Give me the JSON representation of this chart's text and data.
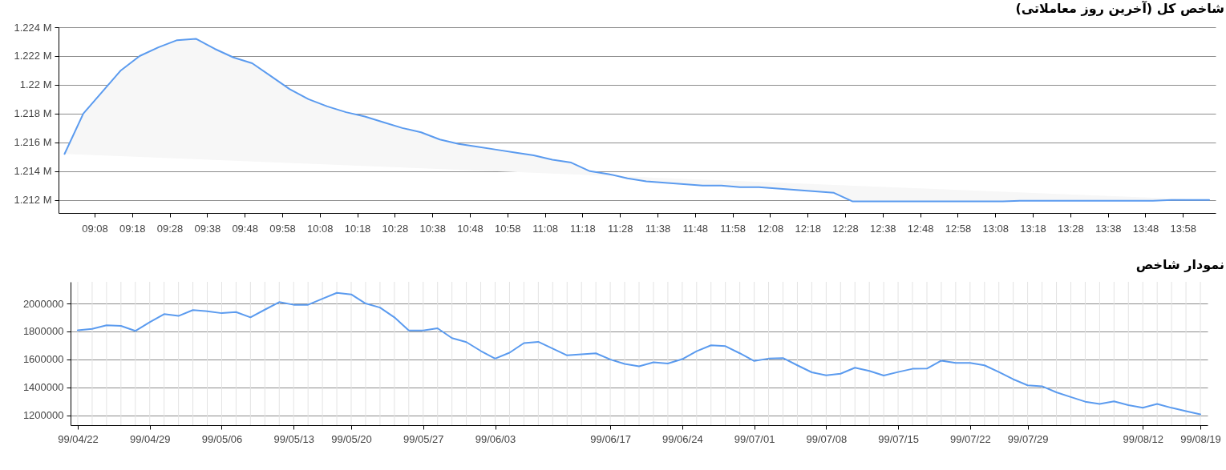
{
  "chart_data": [
    {
      "type": "area",
      "title": "شاخص کل (آخرین روز معاملاتی)",
      "x": [
        9.0,
        9.0833,
        9.1667,
        9.25,
        9.3333,
        9.4167,
        9.5,
        9.5833,
        9.6667,
        9.75,
        9.8333,
        9.9167,
        10.0,
        10.0833,
        10.1667,
        10.25,
        10.3333,
        10.4167,
        10.5,
        10.5833,
        10.6667,
        10.75,
        10.8333,
        10.9167,
        11.0,
        11.0833,
        11.1667,
        11.25,
        11.3333,
        11.4167,
        11.5,
        11.5833,
        11.6667,
        11.75,
        11.8333,
        11.9167,
        12.0,
        12.0833,
        12.1667,
        12.25,
        12.3333,
        12.4167,
        12.5,
        12.5833,
        12.6667,
        12.75,
        12.8333,
        12.9167,
        13.0,
        13.0833,
        13.1667,
        13.25,
        13.3333,
        13.4167,
        13.5,
        13.5833,
        13.6667,
        13.75,
        13.8333,
        13.9167,
        14.0,
        14.0833
      ],
      "series": [
        {
          "color": "#5b9bef",
          "values": [
            1215200,
            1218000,
            1219500,
            1221000,
            1222000,
            1222600,
            1223100,
            1223200,
            1222500,
            1221900,
            1221500,
            1220600,
            1219700,
            1219000,
            1218500,
            1218100,
            1217800,
            1217400,
            1217000,
            1216700,
            1216200,
            1215900,
            1215700,
            1215500,
            1215300,
            1215100,
            1214800,
            1214600,
            1214000,
            1213800,
            1213500,
            1213300,
            1213200,
            1213100,
            1213000,
            1213000,
            1212900,
            1212900,
            1212800,
            1212700,
            1212600,
            1212500,
            1211900,
            1211900,
            1211900,
            1211900,
            1211900,
            1211900,
            1211900,
            1211900,
            1211900,
            1211950,
            1211950,
            1211950,
            1211950,
            1211950,
            1211950,
            1211950,
            1211950,
            1212000,
            1212000,
            1212000
          ]
        }
      ],
      "xlim": [
        8.9733,
        14.1117
      ],
      "xticks": [
        {
          "value": 9.1333,
          "label": "09:08"
        },
        {
          "value": 9.3,
          "label": "09:18"
        },
        {
          "value": 9.4667,
          "label": "09:28"
        },
        {
          "value": 9.6333,
          "label": "09:38"
        },
        {
          "value": 9.8,
          "label": "09:48"
        },
        {
          "value": 9.9667,
          "label": "09:58"
        },
        {
          "value": 10.1333,
          "label": "10:08"
        },
        {
          "value": 10.3,
          "label": "10:18"
        },
        {
          "value": 10.4667,
          "label": "10:28"
        },
        {
          "value": 10.6333,
          "label": "10:38"
        },
        {
          "value": 10.8,
          "label": "10:48"
        },
        {
          "value": 10.9667,
          "label": "10:58"
        },
        {
          "value": 11.1333,
          "label": "11:08"
        },
        {
          "value": 11.3,
          "label": "11:18"
        },
        {
          "value": 11.4667,
          "label": "11:28"
        },
        {
          "value": 11.6333,
          "label": "11:38"
        },
        {
          "value": 11.8,
          "label": "11:48"
        },
        {
          "value": 11.9667,
          "label": "11:58"
        },
        {
          "value": 12.1333,
          "label": "12:08"
        },
        {
          "value": 12.3,
          "label": "12:18"
        },
        {
          "value": 12.4667,
          "label": "12:28"
        },
        {
          "value": 12.6333,
          "label": "12:38"
        },
        {
          "value": 12.8,
          "label": "12:48"
        },
        {
          "value": 12.9667,
          "label": "12:58"
        },
        {
          "value": 13.1333,
          "label": "13:08"
        },
        {
          "value": 13.3,
          "label": "13:18"
        },
        {
          "value": 13.4667,
          "label": "13:28"
        },
        {
          "value": 13.6333,
          "label": "13:38"
        },
        {
          "value": 13.8,
          "label": "13:48"
        },
        {
          "value": 13.9667,
          "label": "13:58"
        }
      ],
      "ylim": [
        1211100,
        1224000
      ],
      "yticks": [
        {
          "value": 1212000,
          "label": "1.212 M"
        },
        {
          "value": 1214000,
          "label": "1.214 M"
        },
        {
          "value": 1216000,
          "label": "1.216 M"
        },
        {
          "value": 1218000,
          "label": "1.218 M"
        },
        {
          "value": 1220000,
          "label": "1.22 M"
        },
        {
          "value": 1222000,
          "label": "1.222 M"
        },
        {
          "value": 1224000,
          "label": "1.224 M"
        }
      ],
      "grid": "y"
    },
    {
      "type": "line",
      "title": "نمودار شاخص",
      "categories": [
        "99/04/22",
        null,
        null,
        null,
        null,
        "99/04/29",
        null,
        null,
        null,
        null,
        "99/05/06",
        null,
        null,
        null,
        null,
        "99/05/13",
        null,
        null,
        null,
        "99/05/20",
        null,
        null,
        null,
        null,
        "99/05/27",
        null,
        null,
        null,
        null,
        "99/06/03",
        null,
        null,
        null,
        null,
        null,
        null,
        null,
        "99/06/17",
        null,
        null,
        null,
        null,
        "99/06/24",
        null,
        null,
        null,
        null,
        "99/07/01",
        null,
        null,
        null,
        null,
        "99/07/08",
        null,
        null,
        null,
        null,
        "99/07/15",
        null,
        null,
        null,
        null,
        "99/07/22",
        null,
        null,
        null,
        "99/07/29",
        null,
        null,
        null,
        null,
        null,
        null,
        null,
        "99/08/12",
        null,
        null,
        null,
        "99/08/19"
      ],
      "series": [
        {
          "color": "#5b9bef",
          "values": [
            1808000,
            1819000,
            1844000,
            1840000,
            1804000,
            1866000,
            1924000,
            1911000,
            1953000,
            1945000,
            1931000,
            1939000,
            1901000,
            1956000,
            2010000,
            1991000,
            1991000,
            2034000,
            2076000,
            2065000,
            2000000,
            1971000,
            1901000,
            1807000,
            1807000,
            1823000,
            1753000,
            1724000,
            1661000,
            1606000,
            1648000,
            1717000,
            1726000,
            1678000,
            1629000,
            1637000,
            1644000,
            1600000,
            1568000,
            1551000,
            1579000,
            1571000,
            1602000,
            1659000,
            1701000,
            1695000,
            1644000,
            1589000,
            1606000,
            1610000,
            1558000,
            1508000,
            1487000,
            1498000,
            1541000,
            1518000,
            1485000,
            1510000,
            1533000,
            1535000,
            1591000,
            1575000,
            1575000,
            1558000,
            1510000,
            1458000,
            1415000,
            1408000,
            1365000,
            1331000,
            1298000,
            1282000,
            1300000,
            1273000,
            1255000,
            1282000,
            1254000,
            1230000,
            1207000
          ]
        }
      ],
      "ylim": [
        1130000,
        2155000
      ],
      "yticks": [
        1200000,
        1400000,
        1600000,
        1800000,
        2000000
      ],
      "grid": true
    }
  ]
}
